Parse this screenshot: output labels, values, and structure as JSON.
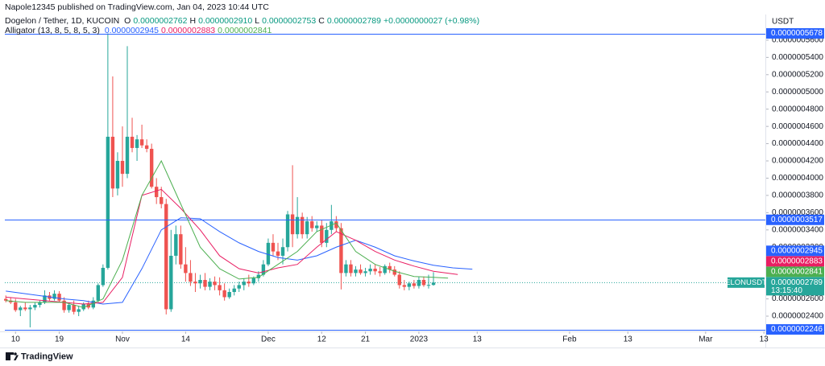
{
  "header": {
    "byline": "Napole12345 published on TradingView.com, Jan 04, 2023 10:44 UTC",
    "logo": "TradingView"
  },
  "legend": {
    "symbol": "Dogelon / Tether, 1D, KUCOIN",
    "ohlc": [
      {
        "key": "O",
        "value": "0.0000002762"
      },
      {
        "key": "H",
        "value": "0.0000002910"
      },
      {
        "key": "L",
        "value": "0.0000002753"
      },
      {
        "key": "C",
        "value": "0.0000002789"
      }
    ],
    "change": "+0.0000000027 (+0.98%)",
    "indicator": "Alligator (13, 8, 5, 8, 5, 3)",
    "indicator_values": [
      "0.0000002945",
      "0.0000002883",
      "0.0000002841"
    ]
  },
  "chart_data": {
    "type": "candlestick",
    "unit": "USDT",
    "xlim": [
      -0.2,
      156.3
    ],
    "xticks": [
      {
        "value": 2,
        "label": "10"
      },
      {
        "value": 11,
        "label": "19"
      },
      {
        "value": 24,
        "label": "Nov"
      },
      {
        "value": 37,
        "label": "14"
      },
      {
        "value": 54,
        "label": "Dec"
      },
      {
        "value": 65,
        "label": "12"
      },
      {
        "value": 74,
        "label": "21"
      },
      {
        "value": 85,
        "label": "2023"
      },
      {
        "value": 97,
        "label": "13"
      },
      {
        "value": 116,
        "label": "Feb"
      },
      {
        "value": 128,
        "label": "13"
      },
      {
        "value": 144,
        "label": "Mar"
      },
      {
        "value": 156,
        "label": "13"
      }
    ],
    "ylim": [
      2.223e-07,
      5.879e-07
    ],
    "yticks": [
      {
        "value": 2.4e-07,
        "label": "0.0000002400"
      },
      {
        "value": 2.6e-07,
        "label": "0.0000002600"
      },
      {
        "value": 2.8e-07,
        "label": "0.0000002800"
      },
      {
        "value": 3e-07,
        "label": "0.0000003000"
      },
      {
        "value": 3.2e-07,
        "label": "0.0000003200"
      },
      {
        "value": 3.4e-07,
        "label": "0.0000003400"
      },
      {
        "value": 3.6e-07,
        "label": "0.0000003600"
      },
      {
        "value": 3.8e-07,
        "label": "0.0000003800"
      },
      {
        "value": 4e-07,
        "label": "0.0000004000"
      },
      {
        "value": 4.2e-07,
        "label": "0.0000004200"
      },
      {
        "value": 4.4e-07,
        "label": "0.0000004400"
      },
      {
        "value": 4.6e-07,
        "label": "0.0000004600"
      },
      {
        "value": 4.8e-07,
        "label": "0.0000004800"
      },
      {
        "value": 5e-07,
        "label": "0.0000005000"
      },
      {
        "value": 5.2e-07,
        "label": "0.0000005200"
      },
      {
        "value": 5.4e-07,
        "label": "0.0000005400"
      },
      {
        "value": 5.6e-07,
        "label": "0.0000005600"
      }
    ],
    "up_color": "#26a69a",
    "down_color": "#ef5350",
    "open": [
      2.6e-07,
      2.58e-07,
      2.56e-07,
      2.47e-07,
      2.5e-07,
      2.48e-07,
      2.5e-07,
      2.53e-07,
      2.56e-07,
      2.64e-07,
      2.6e-07,
      2.66e-07,
      2.58e-07,
      2.47e-07,
      2.53e-07,
      2.45e-07,
      2.48e-07,
      2.54e-07,
      2.5e-07,
      2.58e-07,
      2.76e-07,
      2.96e-07,
      4.48e-07,
      3.88e-07,
      4.2e-07,
      4.05e-07,
      4.48e-07,
      4.35e-07,
      4.45e-07,
      4.38e-07,
      4.34e-07,
      3.9e-07,
      3.78e-07,
      3.7e-07,
      2.48e-07,
      3.1e-07,
      3.35e-07,
      3e-07,
      2.9e-07,
      2.8e-07,
      2.78e-07,
      2.82e-07,
      2.74e-07,
      2.8e-07,
      2.76e-07,
      2.7e-07,
      2.62e-07,
      2.68e-07,
      2.72e-07,
      2.76e-07,
      2.8e-07,
      2.78e-07,
      2.84e-07,
      2.88e-07,
      3e-07,
      3.25e-07,
      3.15e-07,
      3.1e-07,
      3.2e-07,
      3.58e-07,
      3.35e-07,
      3.55e-07,
      3.35e-07,
      3.5e-07,
      3.42e-07,
      3.45e-07,
      3.25e-07,
      3.4e-07,
      3.5e-07,
      3.42e-07,
      2.9e-07,
      3e-07,
      2.9e-07,
      2.94e-07,
      2.9e-07,
      2.92e-07,
      2.95e-07,
      2.92e-07,
      2.9e-07,
      2.98e-07,
      2.94e-07,
      2.88e-07,
      2.76e-07,
      2.74e-07,
      2.78e-07,
      2.75e-07,
      2.82e-07,
      2.76e-07,
      2.762e-07
    ],
    "high": [
      2.64e-07,
      2.62e-07,
      2.6e-07,
      2.52e-07,
      2.56e-07,
      2.53e-07,
      2.56e-07,
      2.58e-07,
      2.7e-07,
      2.68e-07,
      2.7e-07,
      2.69e-07,
      2.62e-07,
      2.56e-07,
      2.58e-07,
      2.52e-07,
      2.56e-07,
      2.58e-07,
      2.62e-07,
      2.78e-07,
      3e-07,
      5.678e-07,
      5.18e-07,
      4.3e-07,
      4.6e-07,
      5.53e-07,
      4.7e-07,
      4.5e-07,
      4.62e-07,
      4.45e-07,
      4.4e-07,
      4e-07,
      3.9e-07,
      3.76e-07,
      3.4e-07,
      3.45e-07,
      3.45e-07,
      3.2e-07,
      3.05e-07,
      2.9e-07,
      2.88e-07,
      2.9e-07,
      2.84e-07,
      2.86e-07,
      2.85e-07,
      2.78e-07,
      2.72e-07,
      2.76e-07,
      2.8e-07,
      2.84e-07,
      2.88e-07,
      2.86e-07,
      2.92e-07,
      3.05e-07,
      3.3e-07,
      3.35e-07,
      3.25e-07,
      3.3e-07,
      3.62e-07,
      4.15e-07,
      3.78e-07,
      3.6e-07,
      3.55e-07,
      3.56e-07,
      3.5e-07,
      3.52e-07,
      3.48e-07,
      3.69e-07,
      3.56e-07,
      3.48e-07,
      3.05e-07,
      3.05e-07,
      2.98e-07,
      3e-07,
      2.96e-07,
      3e-07,
      3e-07,
      2.97e-07,
      3e-07,
      3.02e-07,
      2.98e-07,
      2.92e-07,
      2.82e-07,
      2.8e-07,
      2.82e-07,
      2.86e-07,
      2.86e-07,
      2.88e-07,
      2.91e-07
    ],
    "low": [
      2.56e-07,
      2.54e-07,
      2.45e-07,
      2.4e-07,
      2.46e-07,
      2.27e-07,
      2.47e-07,
      2.5e-07,
      2.54e-07,
      2.58e-07,
      2.58e-07,
      2.56e-07,
      2.44e-07,
      2.44e-07,
      2.42e-07,
      2.4e-07,
      2.46e-07,
      2.48e-07,
      2.48e-07,
      2.56e-07,
      2.74e-07,
      2.94e-07,
      3.78e-07,
      3.8e-07,
      3.9e-07,
      4e-07,
      4.3e-07,
      4.2e-07,
      4.35e-07,
      4.3e-07,
      3.88e-07,
      3.7e-07,
      3.65e-07,
      2.42e-07,
      2.45e-07,
      3e-07,
      2.95e-07,
      2.8e-07,
      2.75e-07,
      2.68e-07,
      2.72e-07,
      2.7e-07,
      2.7e-07,
      2.7e-07,
      2.64e-07,
      2.58e-07,
      2.6e-07,
      2.64e-07,
      2.68e-07,
      2.7e-07,
      2.74e-07,
      2.76e-07,
      2.8e-07,
      2.86e-07,
      2.98e-07,
      3.1e-07,
      3.05e-07,
      3e-07,
      3.15e-07,
      3.2e-07,
      3.3e-07,
      3.3e-07,
      3.3e-07,
      3.38e-07,
      3.38e-07,
      3.2e-07,
      3.2e-07,
      3.35e-07,
      3.38e-07,
      2.71e-07,
      2.86e-07,
      2.86e-07,
      2.86e-07,
      2.88e-07,
      2.86e-07,
      2.88e-07,
      2.88e-07,
      2.86e-07,
      2.88e-07,
      2.9e-07,
      2.86e-07,
      2.72e-07,
      2.7e-07,
      2.7e-07,
      2.72e-07,
      2.72e-07,
      2.74e-07,
      2.72e-07,
      2.753e-07
    ],
    "close": [
      2.58e-07,
      2.56e-07,
      2.47e-07,
      2.5e-07,
      2.48e-07,
      2.5e-07,
      2.53e-07,
      2.56e-07,
      2.64e-07,
      2.6e-07,
      2.66e-07,
      2.58e-07,
      2.47e-07,
      2.53e-07,
      2.45e-07,
      2.48e-07,
      2.54e-07,
      2.5e-07,
      2.58e-07,
      2.76e-07,
      2.96e-07,
      4.48e-07,
      3.88e-07,
      4.2e-07,
      4.05e-07,
      4.48e-07,
      4.35e-07,
      4.45e-07,
      4.38e-07,
      4.34e-07,
      3.9e-07,
      3.78e-07,
      3.7e-07,
      2.48e-07,
      3.1e-07,
      3.35e-07,
      3e-07,
      2.9e-07,
      2.8e-07,
      2.78e-07,
      2.82e-07,
      2.74e-07,
      2.8e-07,
      2.76e-07,
      2.7e-07,
      2.62e-07,
      2.68e-07,
      2.72e-07,
      2.76e-07,
      2.8e-07,
      2.78e-07,
      2.84e-07,
      2.88e-07,
      3e-07,
      3.25e-07,
      3.15e-07,
      3.1e-07,
      3.2e-07,
      3.58e-07,
      3.35e-07,
      3.55e-07,
      3.35e-07,
      3.5e-07,
      3.42e-07,
      3.45e-07,
      3.25e-07,
      3.4e-07,
      3.5e-07,
      3.42e-07,
      2.9e-07,
      3e-07,
      2.9e-07,
      2.94e-07,
      2.9e-07,
      2.92e-07,
      2.95e-07,
      2.92e-07,
      2.9e-07,
      2.98e-07,
      2.94e-07,
      2.88e-07,
      2.76e-07,
      2.74e-07,
      2.78e-07,
      2.75e-07,
      2.82e-07,
      2.76e-07,
      2.762e-07,
      2.789e-07
    ],
    "series": [
      {
        "color": "#2962ff",
        "x": [
          0,
          4,
          8,
          12,
          16,
          20,
          24,
          28,
          32,
          36,
          40,
          44,
          48,
          52,
          56,
          60,
          64,
          68,
          72,
          76,
          80,
          84,
          88,
          92,
          96
        ],
        "values": [
          2.69e-07,
          2.66e-07,
          2.63e-07,
          2.6e-07,
          2.58e-07,
          2.54e-07,
          2.56e-07,
          2.95e-07,
          3.4e-07,
          3.54e-07,
          3.53e-07,
          3.38e-07,
          3.25e-07,
          3.15e-07,
          3.08e-07,
          3.05e-07,
          3.1e-07,
          3.2e-07,
          3.28e-07,
          3.2e-07,
          3.1e-07,
          3.04e-07,
          2.99e-07,
          2.96e-07,
          2.945e-07
        ]
      },
      {
        "color": "#e91e63",
        "x": [
          0,
          4,
          8,
          12,
          16,
          20,
          24,
          28,
          32,
          36,
          40,
          44,
          48,
          52,
          56,
          60,
          64,
          68,
          72,
          76,
          80,
          84,
          88,
          93
        ],
        "values": [
          2.62e-07,
          2.6e-07,
          2.58e-07,
          2.56e-07,
          2.54e-07,
          2.56e-07,
          2.85e-07,
          3.8e-07,
          3.87e-07,
          3.65e-07,
          3.4e-07,
          3.1e-07,
          2.95e-07,
          2.9e-07,
          2.96e-07,
          3e-07,
          3.2e-07,
          3.38e-07,
          3.28e-07,
          3.15e-07,
          3.05e-07,
          2.98e-07,
          2.92e-07,
          2.883e-07
        ]
      },
      {
        "color": "#4caf50",
        "x": [
          0,
          4,
          8,
          12,
          16,
          20,
          24,
          28,
          32,
          36,
          40,
          44,
          48,
          52,
          56,
          60,
          64,
          68,
          72,
          76,
          80,
          84,
          88,
          91
        ],
        "values": [
          2.58e-07,
          2.56e-07,
          2.56e-07,
          2.56e-07,
          2.5e-07,
          2.6e-07,
          3.05e-07,
          3.8e-07,
          4.2e-07,
          3.7e-07,
          3.2e-07,
          2.95e-07,
          2.83e-07,
          2.85e-07,
          3e-07,
          3.15e-07,
          3.38e-07,
          3.48e-07,
          3.15e-07,
          3e-07,
          2.92e-07,
          2.86e-07,
          2.85e-07,
          2.841e-07
        ]
      }
    ],
    "price_lines": [
      {
        "value": 5.678e-07,
        "label": "0.0000005678",
        "color": "#2962ff",
        "line": true
      },
      {
        "value": 3.517e-07,
        "label": "0.0000003517",
        "color": "#2962ff",
        "line": true
      },
      {
        "value": 2.945e-07,
        "label": "0.0000002945",
        "color": "#2962ff",
        "line": false
      },
      {
        "value": 2.883e-07,
        "label": "0.0000002883",
        "color": "#e91e63",
        "line": false
      },
      {
        "value": 2.841e-07,
        "label": "0.0000002841",
        "color": "#4caf50",
        "line": false
      },
      {
        "value": 2.246e-07,
        "label": "0.0000002246",
        "color": "#2962ff",
        "line": true
      }
    ],
    "last_price": {
      "value": 2.789e-07,
      "label": "0.0000002789",
      "symbol": "ELONUSDT",
      "countdown": "13:15:40",
      "color": "#26a69a"
    }
  }
}
